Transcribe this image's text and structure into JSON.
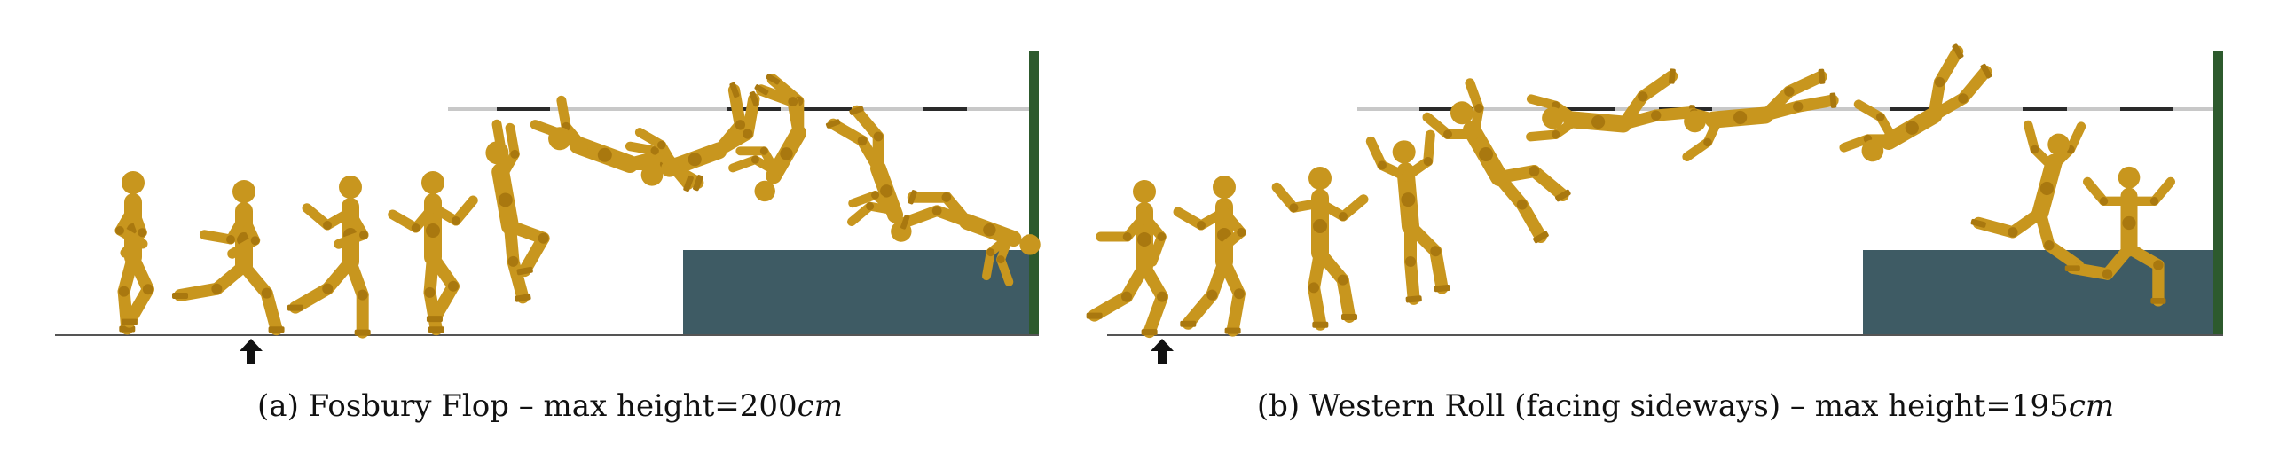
{
  "colors": {
    "figure_body": "#c8961e",
    "figure_joint": "#a9780f",
    "landing_mat": "#3e5b64",
    "upright_post": "#2d5a2d",
    "ground_line": "#555555",
    "crossbar_light": "#c8c8c8",
    "crossbar_dark": "#2a2a2a",
    "takeoff_arrow": "#111111"
  },
  "icons": {
    "takeoff_marker": "up-arrow-icon"
  },
  "panels": [
    {
      "id": "a",
      "caption_prefix": "(a) Fosbury Flop – max height=",
      "caption_value": "200",
      "caption_unit": "cm"
    },
    {
      "id": "b",
      "caption_prefix": "(b) Western Roll (facing sideways) – max height=",
      "caption_value": "195",
      "caption_unit": "cm"
    }
  ]
}
